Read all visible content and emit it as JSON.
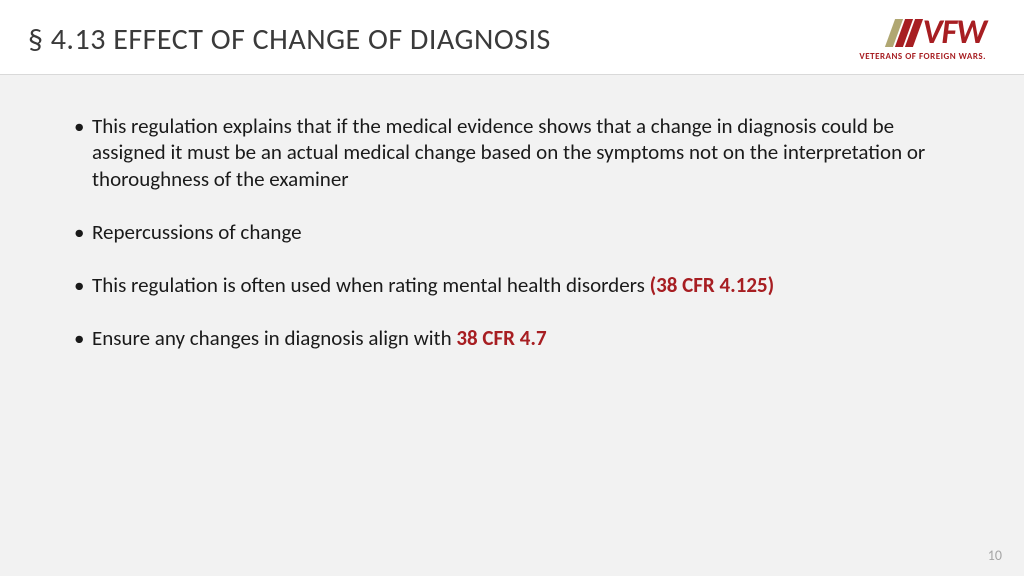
{
  "header": {
    "title": "§ 4.13 EFFECT OF CHANGE OF DIAGNOSIS",
    "logo": {
      "text": "VFW",
      "subtitle": "VETERANS OF FOREIGN WARS.",
      "stripe_colors": [
        "#b0a772",
        "#a71e22",
        "#a71e22"
      ],
      "text_color": "#a71e22"
    }
  },
  "bullets": [
    {
      "pre": "This regulation explains that if the medical evidence shows that a change in diagnosis could be assigned it must be an actual medical change based on the symptoms not on the interpretation or thoroughness of the examiner",
      "ref": "",
      "post": ""
    },
    {
      "pre": "Repercussions of change",
      "ref": "",
      "post": ""
    },
    {
      "pre": "This regulation is often used when rating mental health disorders ",
      "ref": "(38 CFR 4.125)",
      "post": ""
    },
    {
      "pre": "Ensure any changes in diagnosis align with ",
      "ref": "38 CFR 4.7",
      "post": ""
    }
  ],
  "page_number": "10",
  "styles": {
    "title_fontsize": 30,
    "title_color": "#3a3a3a",
    "body_fontsize": 21,
    "body_color": "#1a1a1a",
    "ref_color": "#a71e22",
    "body_bg": "#f2f2f2",
    "header_border": "#d9d9d9",
    "pagenum_color": "#a6a6a6"
  }
}
